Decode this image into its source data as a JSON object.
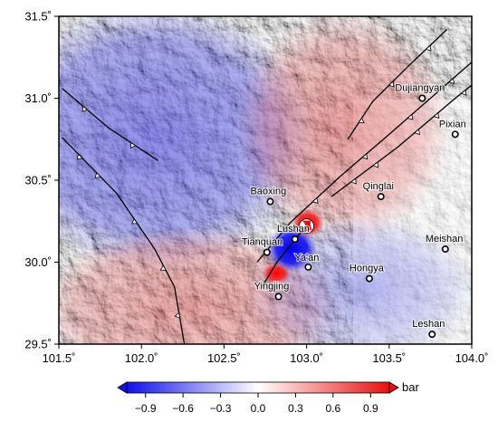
{
  "map": {
    "lon_range": [
      101.5,
      104.0
    ],
    "lat_range": [
      29.5,
      31.5
    ],
    "lon_ticks": [
      {
        "value": 101.5,
        "label": "101.5˚"
      },
      {
        "value": 102.0,
        "label": "102.0˚"
      },
      {
        "value": 102.5,
        "label": "102.5˚"
      },
      {
        "value": 103.0,
        "label": "103.0˚"
      },
      {
        "value": 103.5,
        "label": "103.5˚"
      },
      {
        "value": 104.0,
        "label": "104.0˚"
      }
    ],
    "lat_ticks": [
      {
        "value": 29.5,
        "label": "29.5˚"
      },
      {
        "value": 30.0,
        "label": "30.0˚"
      },
      {
        "value": 30.5,
        "label": "30.5˚"
      },
      {
        "value": 31.0,
        "label": "31.0˚"
      },
      {
        "value": 31.5,
        "label": "31.5˚"
      }
    ],
    "cities": [
      {
        "name": "Dujiangyan",
        "lon": 103.7,
        "lat": 31.0
      },
      {
        "name": "Pixian",
        "lon": 103.9,
        "lat": 30.78
      },
      {
        "name": "Baoxing",
        "lon": 102.78,
        "lat": 30.37
      },
      {
        "name": "Qinglai",
        "lon": 103.45,
        "lat": 30.4
      },
      {
        "name": "Lushan",
        "lon": 102.93,
        "lat": 30.14
      },
      {
        "name": "Tianquan",
        "lon": 102.76,
        "lat": 30.06
      },
      {
        "name": "Ya'an",
        "lon": 103.01,
        "lat": 29.97
      },
      {
        "name": "Hongya",
        "lon": 103.38,
        "lat": 29.9
      },
      {
        "name": "Meishan",
        "lon": 103.84,
        "lat": 30.08
      },
      {
        "name": "Yingjing",
        "lon": 102.83,
        "lat": 29.79
      },
      {
        "name": "Leshan",
        "lon": 103.76,
        "lat": 29.56
      }
    ],
    "epicenter": {
      "lon": 103.0,
      "lat": 30.22
    },
    "faults": [
      {
        "name": "longmenshan-front",
        "points": [
          [
            103.15,
            30.4
          ],
          [
            103.55,
            30.7
          ],
          [
            103.9,
            31.0
          ],
          [
            104.0,
            31.08
          ]
        ],
        "thrust": true
      },
      {
        "name": "longmenshan-central",
        "points": [
          [
            102.7,
            30.0
          ],
          [
            102.9,
            30.24
          ],
          [
            103.2,
            30.52
          ],
          [
            103.5,
            30.78
          ],
          [
            103.75,
            31.0
          ],
          [
            104.0,
            31.22
          ]
        ],
        "thrust": true
      },
      {
        "name": "guanxian-branch",
        "points": [
          [
            103.25,
            30.75
          ],
          [
            103.4,
            30.98
          ],
          [
            103.62,
            31.2
          ],
          [
            103.85,
            31.42
          ]
        ],
        "thrust": true
      },
      {
        "name": "lushan-splay",
        "points": [
          [
            102.73,
            29.85
          ],
          [
            102.82,
            30.0
          ],
          [
            102.98,
            30.2
          ]
        ],
        "thrust": false
      },
      {
        "name": "western-fault-north",
        "points": [
          [
            101.52,
            31.06
          ],
          [
            101.8,
            30.82
          ],
          [
            102.1,
            30.62
          ]
        ],
        "thrust": true
      },
      {
        "name": "western-fault-south",
        "points": [
          [
            101.52,
            30.76
          ],
          [
            101.85,
            30.42
          ],
          [
            102.08,
            30.08
          ],
          [
            102.2,
            29.85
          ],
          [
            102.26,
            29.5
          ]
        ],
        "thrust": true
      }
    ]
  },
  "colorbar": {
    "unit": "bar",
    "min": -1.05,
    "max": 1.05,
    "ticks": [
      {
        "value": -0.9,
        "label": "−0.9"
      },
      {
        "value": -0.6,
        "label": "−0.6"
      },
      {
        "value": -0.3,
        "label": "−0.3"
      },
      {
        "value": 0.0,
        "label": "0.0"
      },
      {
        "value": 0.3,
        "label": "0.3"
      },
      {
        "value": 0.6,
        "label": "0.6"
      },
      {
        "value": 0.9,
        "label": "0.9"
      }
    ],
    "colors": {
      "negative": "#1010e8",
      "zero": "#ffffff",
      "positive": "#e81010"
    }
  }
}
